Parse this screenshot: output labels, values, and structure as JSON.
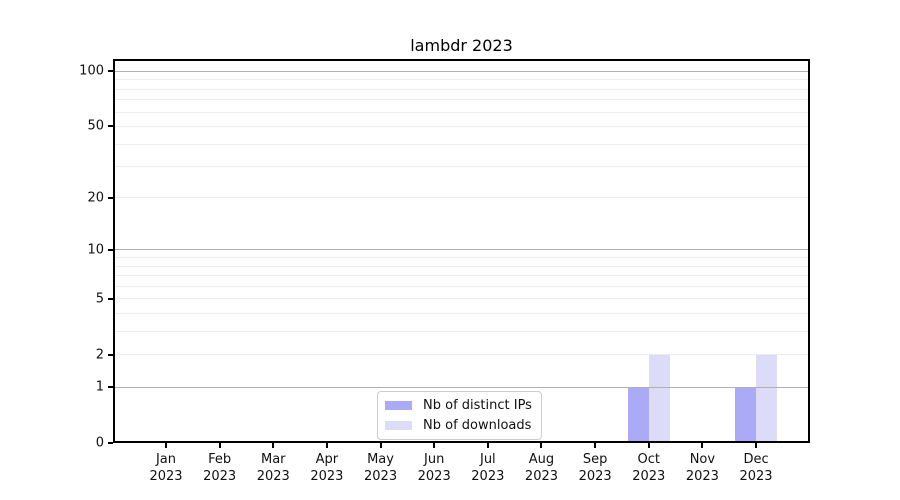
{
  "title": "lambdr 2023",
  "chart_data": {
    "type": "bar",
    "title": "lambdr 2023",
    "categories": [
      "Jan",
      "Feb",
      "Mar",
      "Apr",
      "May",
      "Jun",
      "Jul",
      "Aug",
      "Sep",
      "Oct",
      "Nov",
      "Dec"
    ],
    "category_year": "2023",
    "series": [
      {
        "name": "Nb of distinct IPs",
        "color": "#aaaaf7",
        "values": [
          0,
          0,
          0,
          0,
          0,
          0,
          0,
          0,
          0,
          1,
          0,
          1
        ]
      },
      {
        "name": "Nb of downloads",
        "color": "#dcdcf8",
        "values": [
          0,
          0,
          0,
          0,
          0,
          0,
          0,
          0,
          0,
          2,
          0,
          2
        ]
      }
    ],
    "xlabel": "",
    "ylabel": "",
    "yscale": "log1p",
    "ylim": [
      0,
      115
    ],
    "yticks": [
      0,
      1,
      2,
      5,
      10,
      20,
      50,
      100
    ],
    "grid_major": [
      1,
      10,
      100
    ],
    "grid_minor": [
      2,
      3,
      4,
      5,
      6,
      7,
      8,
      9,
      20,
      30,
      40,
      50,
      60,
      70,
      80,
      90
    ],
    "legend_position": "lower center",
    "colors": {
      "major_gridline": "#b0b0b0",
      "minor_gridline": "#ececec",
      "spine": "#000000",
      "background": "#ffffff"
    }
  }
}
